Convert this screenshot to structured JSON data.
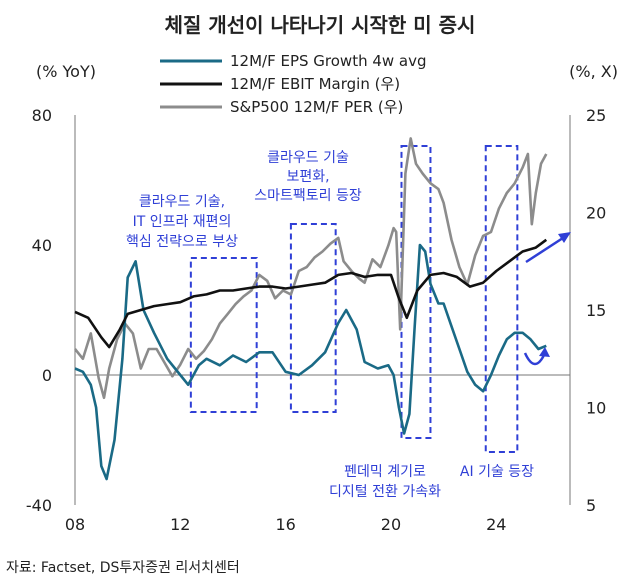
{
  "chart_data": {
    "type": "line",
    "title": "체질 개선이 나타나기 시작한 미 증시",
    "source": "자료: Factset, DS투자증권 리서치센터",
    "left_axis": {
      "unit": "(% YoY)",
      "ylim": [
        -40,
        80
      ],
      "ticks": [
        "80",
        "40",
        "0",
        "-40"
      ],
      "tick_values": [
        80,
        40,
        0,
        -40
      ]
    },
    "right_axis": {
      "unit": "(%, X)",
      "ylim": [
        5,
        25
      ],
      "ticks": [
        "25",
        "20",
        "15",
        "10",
        "5"
      ],
      "tick_values": [
        25,
        20,
        15,
        10,
        5
      ]
    },
    "x_axis": {
      "xlim": [
        2008,
        2026.8
      ],
      "ticks": [
        "08",
        "12",
        "16",
        "20",
        "24"
      ],
      "tick_values": [
        2008,
        2012,
        2016,
        2020,
        2024
      ]
    },
    "series": [
      {
        "name": "12M/F EPS Growth 4w avg",
        "axis": "left",
        "color": "#1a6a86",
        "x": [
          2008.0,
          2008.3,
          2008.6,
          2008.8,
          2009.0,
          2009.2,
          2009.5,
          2009.8,
          2010.0,
          2010.3,
          2010.6,
          2011.0,
          2011.5,
          2012.0,
          2012.3,
          2012.7,
          2013.0,
          2013.5,
          2014.0,
          2014.5,
          2015.0,
          2015.5,
          2016.0,
          2016.5,
          2017.0,
          2017.5,
          2018.0,
          2018.3,
          2018.7,
          2019.0,
          2019.5,
          2019.9,
          2020.1,
          2020.3,
          2020.5,
          2020.7,
          2020.9,
          2021.1,
          2021.3,
          2021.5,
          2021.8,
          2022.0,
          2022.3,
          2022.6,
          2022.9,
          2023.2,
          2023.5,
          2023.8,
          2024.1,
          2024.4,
          2024.7,
          2025.0,
          2025.3,
          2025.6,
          2025.9
        ],
        "values": [
          2,
          1,
          -3,
          -10,
          -28,
          -32,
          -20,
          5,
          30,
          35,
          20,
          13,
          5,
          0,
          -3,
          3,
          5,
          3,
          6,
          4,
          7,
          7,
          1,
          0,
          3,
          7,
          16,
          20,
          14,
          4,
          2,
          3,
          0,
          -10,
          -18,
          -12,
          15,
          40,
          38,
          28,
          22,
          22,
          15,
          8,
          1,
          -3,
          -5,
          0,
          6,
          11,
          13,
          13,
          11,
          8,
          9
        ]
      },
      {
        "name": "12M/F EBIT Margin (우)",
        "axis": "right",
        "color": "#111111",
        "x": [
          2008.0,
          2008.5,
          2009.0,
          2009.3,
          2009.7,
          2010.0,
          2010.5,
          2011.0,
          2011.5,
          2012.0,
          2012.5,
          2013.0,
          2013.5,
          2014.0,
          2014.5,
          2015.0,
          2015.5,
          2016.0,
          2016.5,
          2017.0,
          2017.5,
          2018.0,
          2018.5,
          2019.0,
          2019.5,
          2020.0,
          2020.3,
          2020.6,
          2021.0,
          2021.5,
          2022.0,
          2022.5,
          2023.0,
          2023.5,
          2024.0,
          2024.5,
          2025.0,
          2025.5,
          2025.9
        ],
        "values": [
          14.9,
          14.6,
          13.6,
          13.1,
          14.0,
          14.8,
          15.0,
          15.2,
          15.3,
          15.4,
          15.7,
          15.8,
          16.0,
          16.0,
          16.1,
          16.2,
          16.2,
          16.1,
          16.2,
          16.3,
          16.4,
          16.8,
          16.9,
          16.7,
          16.8,
          16.8,
          15.6,
          14.6,
          16.0,
          16.8,
          16.9,
          16.7,
          16.2,
          16.4,
          17.0,
          17.5,
          18.0,
          18.2,
          18.6
        ]
      },
      {
        "name": "S&P500 12M/F PER (우)",
        "axis": "right",
        "color": "#8c8c8c",
        "x": [
          2008.0,
          2008.3,
          2008.6,
          2008.9,
          2009.1,
          2009.3,
          2009.6,
          2009.9,
          2010.2,
          2010.5,
          2010.8,
          2011.1,
          2011.4,
          2011.7,
          2012.0,
          2012.3,
          2012.6,
          2012.9,
          2013.2,
          2013.5,
          2013.8,
          2014.1,
          2014.4,
          2014.7,
          2015.0,
          2015.3,
          2015.6,
          2015.9,
          2016.2,
          2016.5,
          2016.8,
          2017.1,
          2017.4,
          2017.7,
          2018.0,
          2018.2,
          2018.5,
          2018.8,
          2019.0,
          2019.3,
          2019.6,
          2019.9,
          2020.1,
          2020.2,
          2020.35,
          2020.55,
          2020.75,
          2020.95,
          2021.2,
          2021.5,
          2021.8,
          2022.0,
          2022.3,
          2022.6,
          2022.9,
          2023.2,
          2023.5,
          2023.8,
          2024.1,
          2024.4,
          2024.7,
          2025.0,
          2025.2,
          2025.35,
          2025.5,
          2025.7,
          2025.9
        ],
        "values": [
          13.0,
          12.5,
          13.8,
          11.5,
          10.5,
          12.0,
          13.5,
          14.3,
          13.8,
          12.0,
          13.0,
          13.0,
          12.3,
          11.6,
          12.2,
          13.0,
          12.5,
          12.9,
          13.5,
          14.3,
          14.8,
          15.3,
          15.7,
          16.0,
          16.8,
          16.5,
          15.6,
          16.0,
          15.8,
          17.0,
          17.2,
          17.7,
          18.0,
          18.4,
          18.7,
          17.5,
          17.0,
          16.6,
          16.4,
          17.6,
          17.2,
          18.3,
          19.2,
          19.0,
          14.0,
          22.0,
          23.8,
          22.5,
          22.0,
          21.5,
          21.2,
          20.5,
          18.6,
          17.2,
          16.3,
          17.8,
          18.8,
          19.0,
          20.2,
          21.0,
          21.5,
          22.3,
          23.0,
          19.4,
          21.0,
          22.5,
          23.0
        ]
      }
    ],
    "annotations": [
      {
        "lines": [
          "클라우드 기술,",
          "IT 인프라 재편의",
          "핵심 전략으로 부상"
        ],
        "box_x": [
          2012.4,
          2014.9
        ]
      },
      {
        "lines": [
          "클라우드 기술",
          "보편화,",
          "스마트팩토리 등장"
        ],
        "box_x": [
          2016.2,
          2017.9
        ]
      },
      {
        "lines": [
          "펜데믹 계기로",
          "디지털 전환 가속화"
        ],
        "box_x": [
          2020.4,
          2021.5
        ]
      },
      {
        "lines": [
          "AI 기술 등장"
        ],
        "box_x": [
          2023.6,
          2024.8
        ]
      }
    ],
    "colors": {
      "annotation": "#2f3fd6",
      "eps": "#1a6a86",
      "ebit": "#111111",
      "per": "#8c8c8c"
    },
    "grid": false,
    "legend_position": "top-center"
  }
}
